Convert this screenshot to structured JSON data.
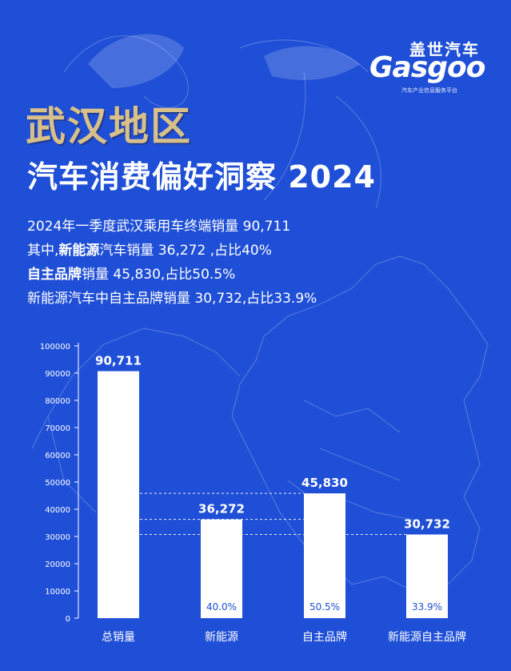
{
  "logo": {
    "cn": "盖世汽车",
    "en": "Gasgoo",
    "sub": "汽车产业信息服务平台"
  },
  "title_line1": "武汉地区",
  "title_line2": "汽车消费偏好洞察 2024",
  "stats": {
    "line1": "2024年一季度武汉乘用车终端销量 90,711",
    "line2_pre": "其中,",
    "line2_bold": "新能源",
    "line2_post": "汽车销量 36,272 ,占比40%",
    "line3_bold": "自主品牌",
    "line3_post": "销量 45,830,占比50.5%",
    "line4": "新能源汽车中自主品牌销量 30,732,占比33.9%"
  },
  "colors": {
    "background": "#1f4fd6",
    "title_gold": "#d8c08a",
    "bar": "#ffffff"
  },
  "chart_data": {
    "type": "bar",
    "categories": [
      "总销量",
      "新能源",
      "自主品牌",
      "新能源自主品牌"
    ],
    "values": [
      90711,
      36272,
      45830,
      30732
    ],
    "value_labels": [
      "90,711",
      "36,272",
      "45,830",
      "30,732"
    ],
    "share_labels": [
      "",
      "40.0%",
      "50.5%",
      "33.9%"
    ],
    "ylim": [
      0,
      100000
    ],
    "yticks": [
      "0",
      "10000",
      "20000",
      "30000",
      "40000",
      "50000",
      "60000",
      "70000",
      "80000",
      "90000",
      "100000"
    ],
    "reference_lines": [
      45830,
      36272,
      30732
    ],
    "grid": false
  }
}
